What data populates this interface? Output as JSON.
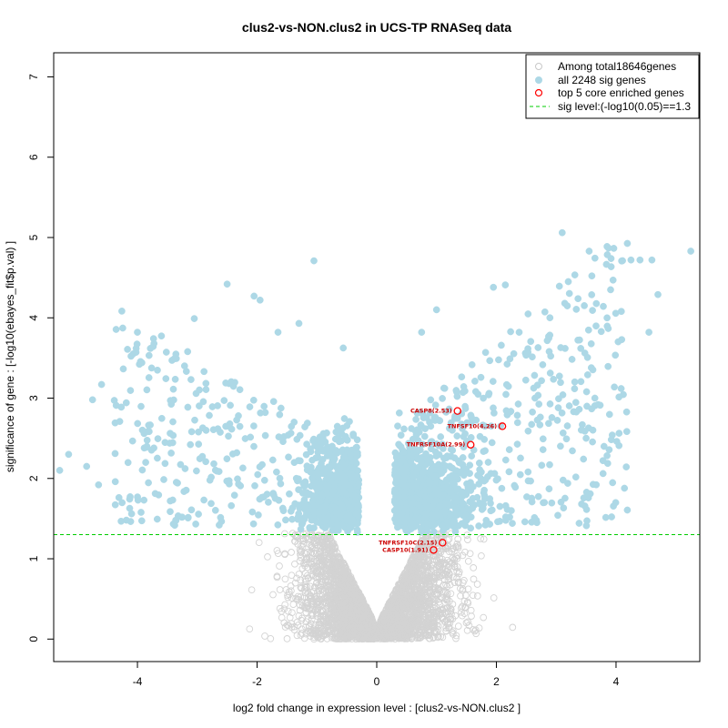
{
  "chart_data": {
    "type": "scatter",
    "title": "clus2-vs-NON.clus2 in UCS-TP RNASeq data",
    "xlabel": "log2 fold change in expression level : [clus2-vs-NON.clus2 ]",
    "ylabel": "significance of gene : [-log10(ebayes_fit$p.val) ]",
    "xlim": [
      -5.4,
      5.4
    ],
    "ylim": [
      -0.28,
      7.3
    ],
    "x_ticks": [
      -4,
      -2,
      0,
      2,
      4
    ],
    "y_ticks": [
      0,
      1,
      2,
      3,
      4,
      5,
      6,
      7
    ],
    "x_tick_labels": [
      "-4",
      "-2",
      "0",
      "2",
      "4"
    ],
    "y_tick_labels": [
      "0",
      "1",
      "2",
      "3",
      "4",
      "5",
      "6",
      "7"
    ],
    "sig_level": 1.3,
    "colors": {
      "background_points": "#d3d3d3",
      "sig_points": "#add8e6",
      "core_genes": "#ff0000",
      "sig_line": "#00cc00"
    },
    "legend": {
      "placement": "top-right",
      "entries": [
        {
          "label": "Among total18646genes",
          "marker": "open-circle-gray"
        },
        {
          "label": "all 2248 sig genes",
          "marker": "filled-circle-lightblue"
        },
        {
          "label": "top 5 core enriched genes",
          "marker": "open-circle-red"
        },
        {
          "label": "sig level:(-log10(0.05)==1.3",
          "marker": "dashed-line-green"
        }
      ]
    },
    "core_genes": [
      {
        "label": "CASP8(2.53)",
        "x": 1.35,
        "y": 2.84
      },
      {
        "label": "TNFSF10(4.26)",
        "x": 2.1,
        "y": 2.65
      },
      {
        "label": "TNFRSF10A(2.99)",
        "x": 1.57,
        "y": 2.42
      },
      {
        "label": "TNFRSF10C(2.15)",
        "x": 1.1,
        "y": 1.2
      },
      {
        "label": "CASP10(1.91)",
        "x": 0.95,
        "y": 1.11
      }
    ],
    "sig_points_notable": [
      {
        "x": 5.25,
        "y": 4.83
      },
      {
        "x": 4.6,
        "y": 4.72
      },
      {
        "x": 4.4,
        "y": 4.72
      },
      {
        "x": 4.25,
        "y": 4.72
      },
      {
        "x": 3.1,
        "y": 5.06
      },
      {
        "x": 3.55,
        "y": 4.83
      },
      {
        "x": 4.7,
        "y": 4.29
      },
      {
        "x": 4.55,
        "y": 3.82
      },
      {
        "x": 3.95,
        "y": 4.47
      },
      {
        "x": 3.85,
        "y": 4.0
      },
      {
        "x": 3.7,
        "y": 2.92
      },
      {
        "x": 3.8,
        "y": 2.4
      },
      {
        "x": 3.5,
        "y": 2.5
      },
      {
        "x": -1.05,
        "y": 4.71
      },
      {
        "x": -5.3,
        "y": 2.1
      },
      {
        "x": -5.15,
        "y": 2.3
      },
      {
        "x": -4.85,
        "y": 2.15
      },
      {
        "x": -4.65,
        "y": 1.92
      },
      {
        "x": -4.75,
        "y": 2.98
      },
      {
        "x": -4.6,
        "y": 3.17
      },
      {
        "x": -4.0,
        "y": 3.82
      },
      {
        "x": -2.05,
        "y": 4.27
      },
      {
        "x": -1.95,
        "y": 4.22
      },
      {
        "x": -2.5,
        "y": 4.42
      },
      {
        "x": -1.3,
        "y": 3.93
      },
      {
        "x": -3.05,
        "y": 3.99
      },
      {
        "x": -1.65,
        "y": 3.82
      },
      {
        "x": 0.75,
        "y": 3.82
      },
      {
        "x": 1.0,
        "y": 4.1
      },
      {
        "x": 2.15,
        "y": 4.41
      },
      {
        "x": 1.95,
        "y": 4.38
      }
    ],
    "bulk_distribution": "volcano: non-significant gray points below y=1.3 forming a V centered at x=0; dense light-blue significant points above y=1.3 for |x| > 0.3"
  }
}
